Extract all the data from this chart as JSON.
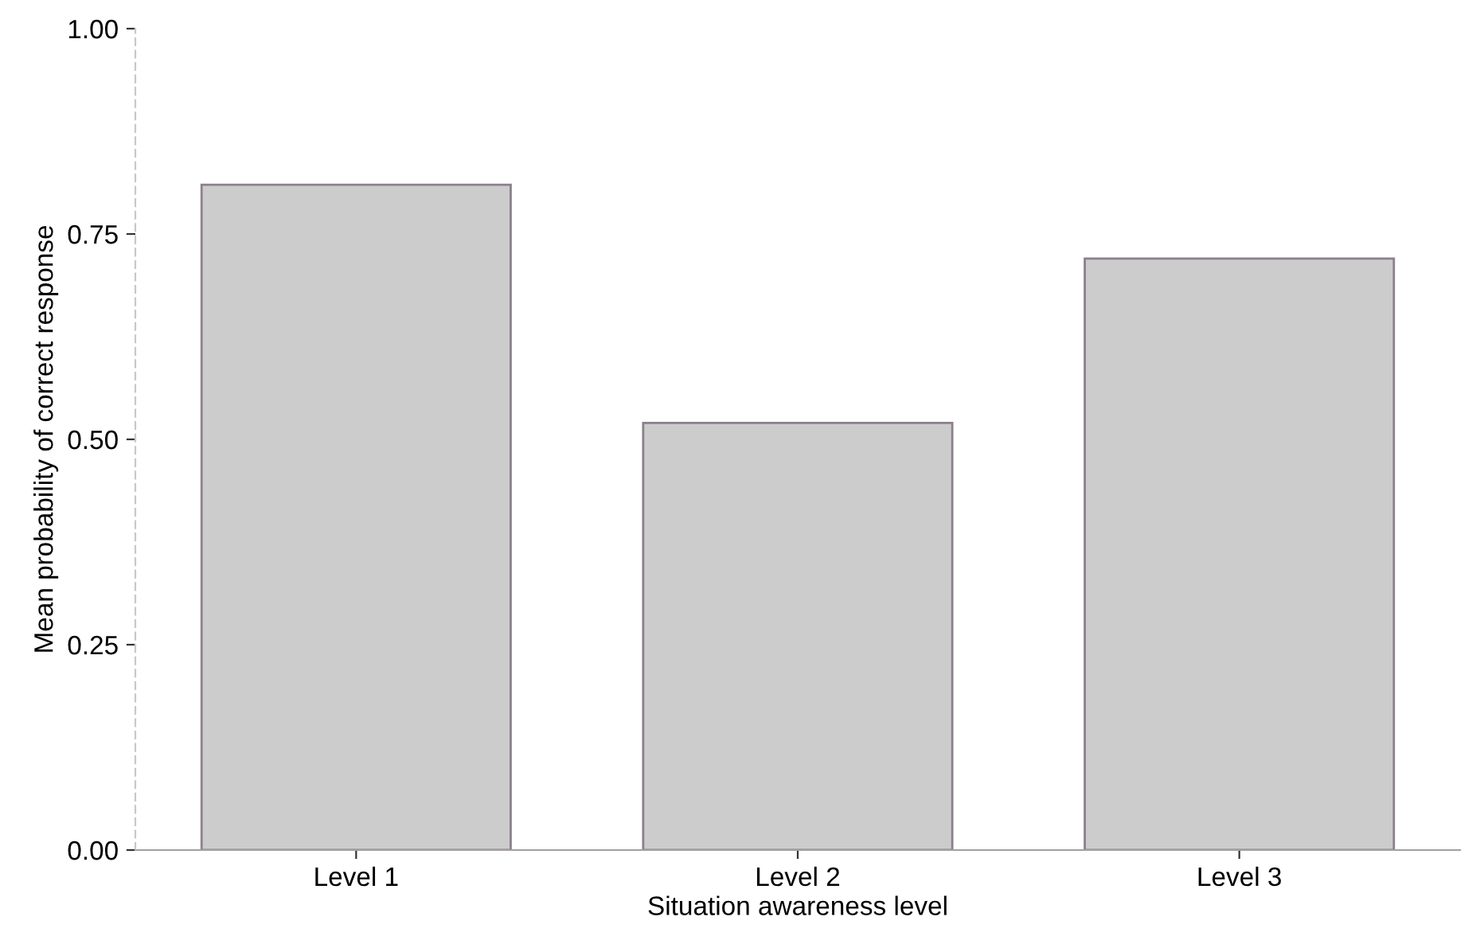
{
  "chart_data": {
    "type": "bar",
    "xlabel": "Situation awareness level",
    "ylabel": "Mean probability of correct response",
    "categories": [
      "Level 1",
      "Level 2",
      "Level 3"
    ],
    "values": [
      0.81,
      0.52,
      0.72
    ],
    "color": "#cccccc",
    "ylim": [
      0,
      1
    ],
    "yticks": [
      {
        "value": 0,
        "label": "0.00"
      },
      {
        "value": 0.25,
        "label": "0.25"
      },
      {
        "value": 0.5,
        "label": "0.50"
      },
      {
        "value": 0.75,
        "label": "0.75"
      },
      {
        "value": 1,
        "label": "1.00"
      }
    ],
    "grid": false
  }
}
